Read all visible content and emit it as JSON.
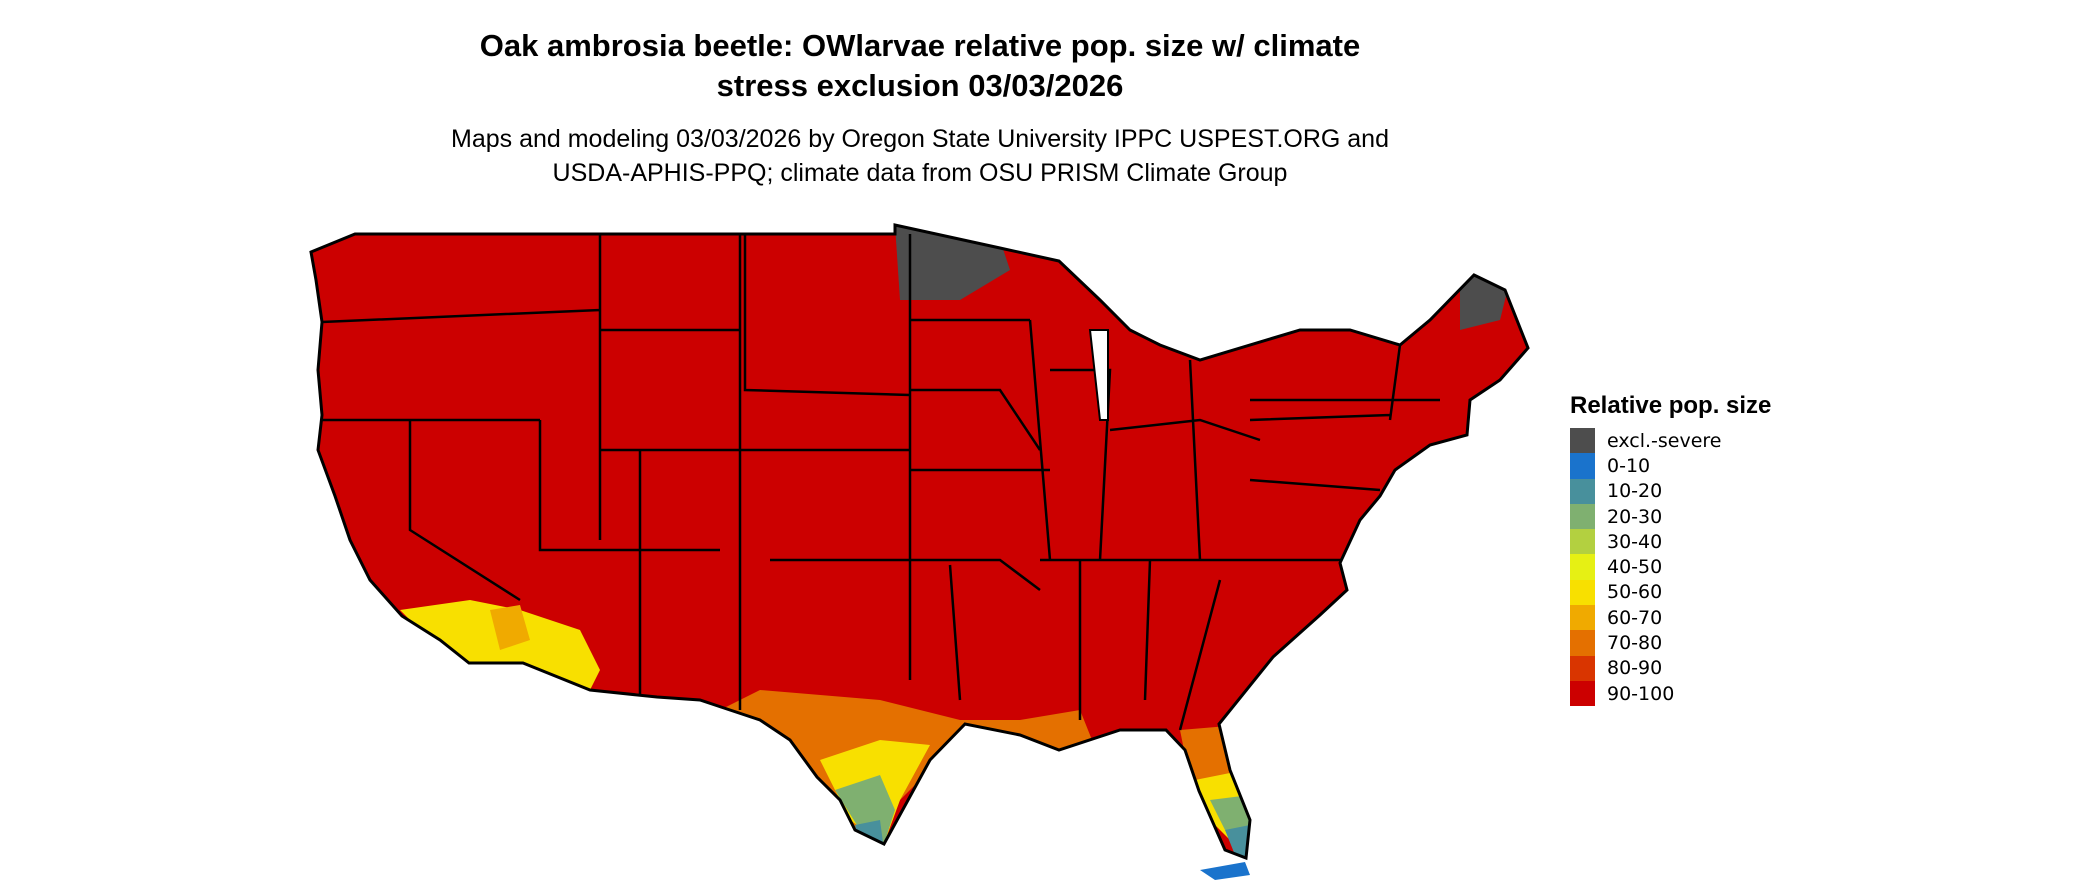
{
  "title": {
    "line1": "Oak ambrosia beetle: OWlarvae relative pop. size w/ climate",
    "line2": "stress exclusion 03/03/2026"
  },
  "subtitle": {
    "line1": "Maps and modeling 03/03/2026 by Oregon State University IPPC USPEST.ORG and",
    "line2": "USDA-APHIS-PPQ; climate data from OSU PRISM Climate Group"
  },
  "legend": {
    "title": "Relative pop. size",
    "items": [
      {
        "label": "excl.-severe",
        "color": "#4d4d4d"
      },
      {
        "label": "0-10",
        "color": "#1a73cc"
      },
      {
        "label": "10-20",
        "color": "#48909c"
      },
      {
        "label": "20-30",
        "color": "#7fb070"
      },
      {
        "label": "30-40",
        "color": "#b3d040"
      },
      {
        "label": "40-50",
        "color": "#e6f014"
      },
      {
        "label": "50-60",
        "color": "#f8e000"
      },
      {
        "label": "60-70",
        "color": "#f0aa00"
      },
      {
        "label": "70-80",
        "color": "#e47000"
      },
      {
        "label": "80-90",
        "color": "#d93500"
      },
      {
        "label": "90-100",
        "color": "#cc0000"
      }
    ]
  },
  "map": {
    "region": "Contiguous United States",
    "dominant_class": "90-100",
    "base_color": "#cc0000"
  }
}
